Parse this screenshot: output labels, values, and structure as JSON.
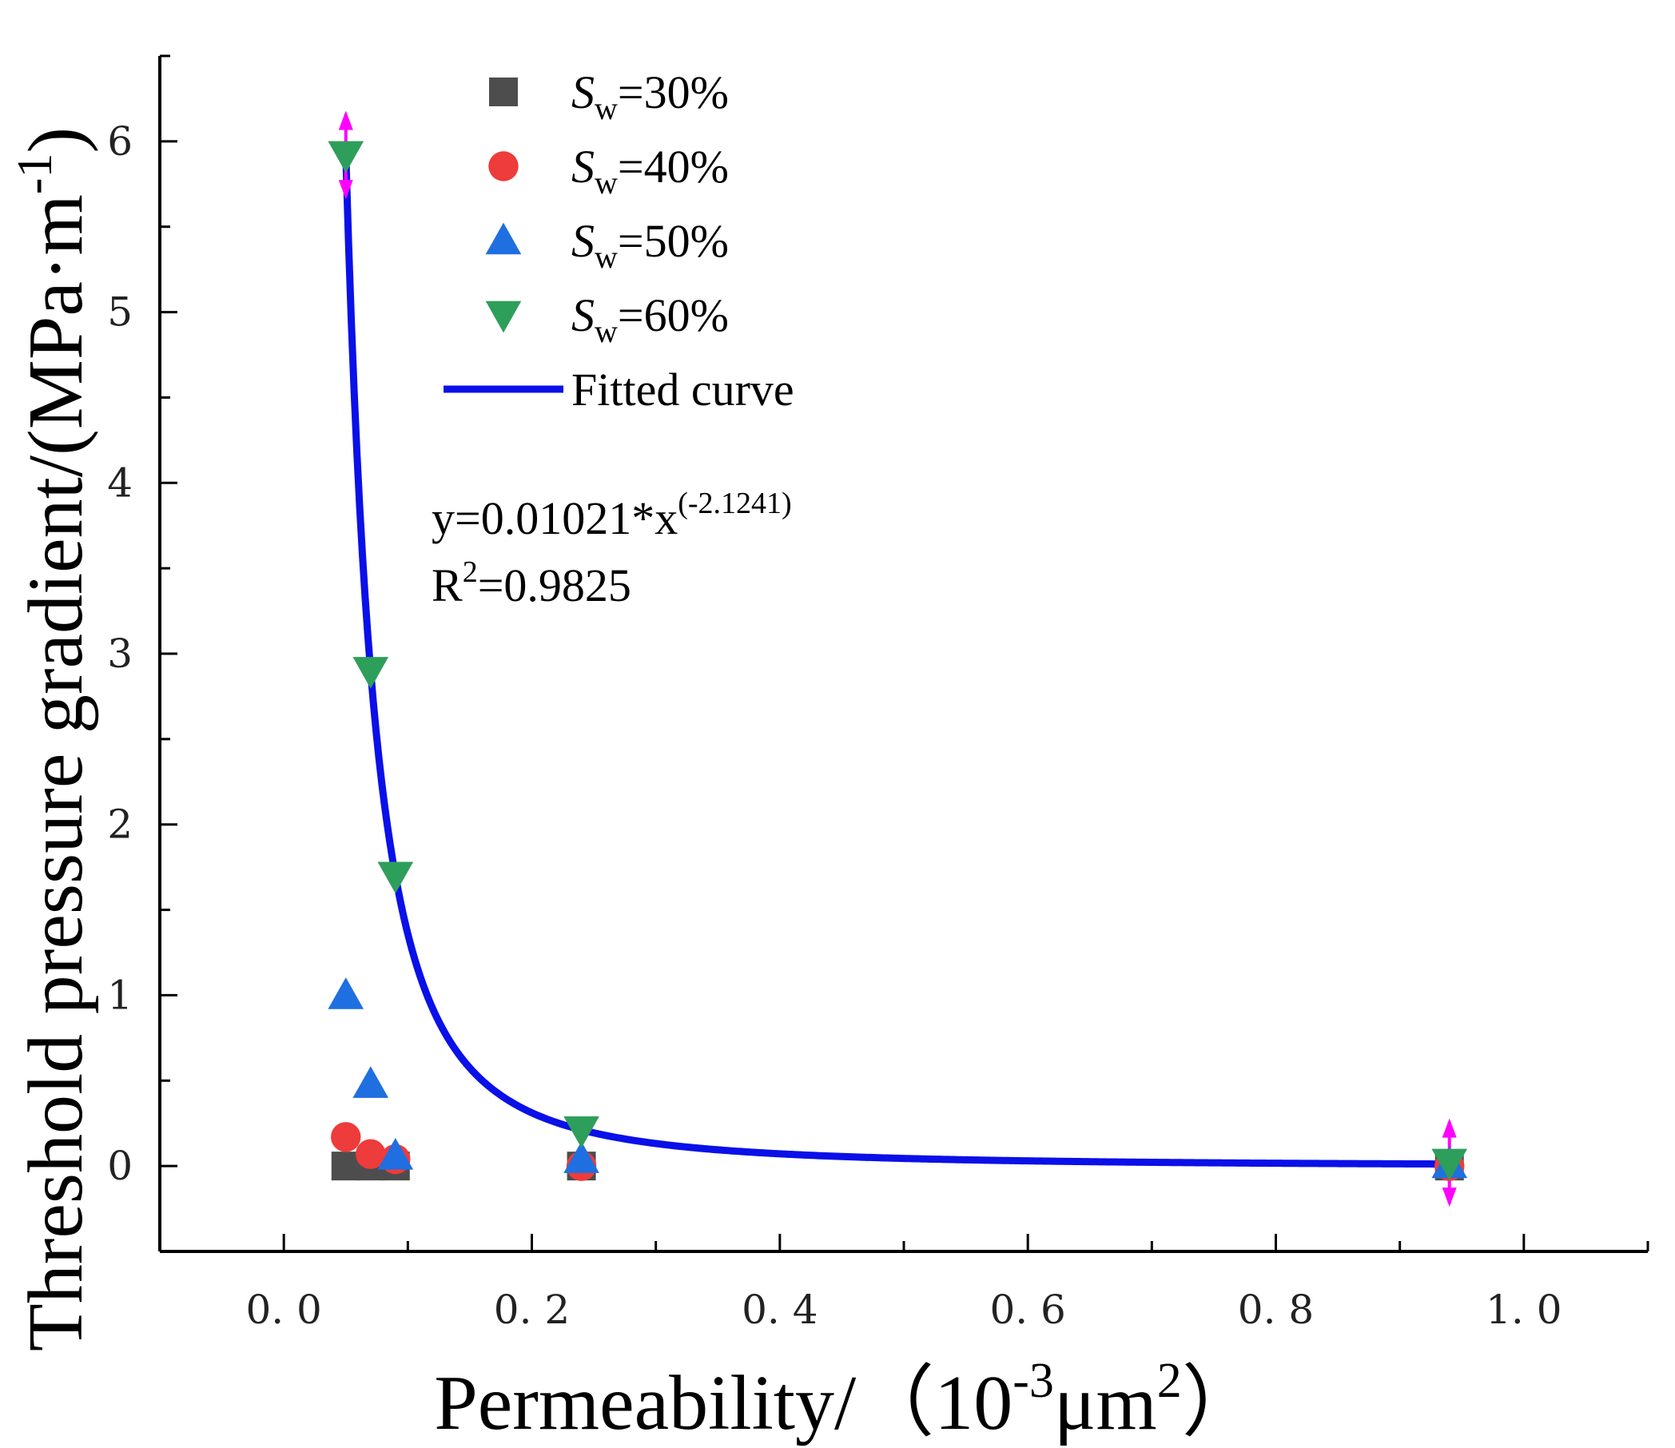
{
  "chart_data": {
    "type": "scatter",
    "xlabel": {
      "main": "Permeability/（10",
      "sup1": "-3",
      "mid": "μm",
      "sup2": "2",
      "end": "）"
    },
    "ylabel": {
      "main": "Threshold pressure gradient/(MPa·m",
      "sup": "-1",
      "end": ")"
    },
    "xlim": [
      -0.1,
      1.1
    ],
    "ylim": [
      -0.5,
      6.5
    ],
    "x_ticks": [
      "0. 0",
      "0. 2",
      "0. 4",
      "0. 6",
      "0. 8",
      "1. 0"
    ],
    "x_tick_values": [
      0.0,
      0.2,
      0.4,
      0.6,
      0.8,
      1.0
    ],
    "y_ticks": [
      "0",
      "1",
      "2",
      "3",
      "4",
      "5",
      "6"
    ],
    "y_tick_values": [
      0,
      1,
      2,
      3,
      4,
      5,
      6
    ],
    "series": [
      {
        "legend": {
          "var": "S",
          "sub": "w",
          "rest": "=30%"
        },
        "marker": "square",
        "color": "#4d4d4d",
        "points": [
          [
            0.05,
            0.0
          ],
          [
            0.07,
            0.0
          ],
          [
            0.09,
            0.0
          ],
          [
            0.24,
            0.0
          ],
          [
            0.94,
            0.0
          ]
        ]
      },
      {
        "legend": {
          "var": "S",
          "sub": "w",
          "rest": "=40%"
        },
        "marker": "circle",
        "color": "#ee3b3b",
        "points": [
          [
            0.05,
            0.17
          ],
          [
            0.07,
            0.07
          ],
          [
            0.09,
            0.04
          ],
          [
            0.24,
            0.0
          ],
          [
            0.94,
            0.0
          ]
        ]
      },
      {
        "legend": {
          "var": "S",
          "sub": "w",
          "rest": "=50%"
        },
        "marker": "triangle-up",
        "color": "#1f6fe0",
        "points": [
          [
            0.05,
            1.0
          ],
          [
            0.07,
            0.48
          ],
          [
            0.09,
            0.06
          ],
          [
            0.24,
            0.04
          ],
          [
            0.94,
            0.01
          ]
        ]
      },
      {
        "legend": {
          "var": "S",
          "sub": "w",
          "rest": "=60%"
        },
        "marker": "triangle-down",
        "color": "#2e9e5b",
        "points": [
          [
            0.05,
            5.92
          ],
          [
            0.07,
            2.9
          ],
          [
            0.09,
            1.7
          ],
          [
            0.24,
            0.21
          ],
          [
            0.94,
            0.02
          ]
        ]
      }
    ],
    "error_bars": [
      {
        "x": 0.05,
        "y": 5.92,
        "low": 5.68,
        "high": 6.16
      },
      {
        "x": 0.94,
        "y": 0.02,
        "low": -0.22,
        "high": 0.26
      }
    ],
    "error_bar_color": "#ff00ff",
    "fit": {
      "legend": "Fitted curve",
      "a": 0.01021,
      "b": -2.1241,
      "x_start": 0.05,
      "x_end": 0.94,
      "color": "#0a10e8",
      "equation": {
        "main": "y=0.01021*x",
        "sup": "(-2.1241)"
      },
      "r2": {
        "main": "R",
        "sup": "2",
        "rest": "=0.9825"
      }
    },
    "legend_position": "top-left"
  }
}
